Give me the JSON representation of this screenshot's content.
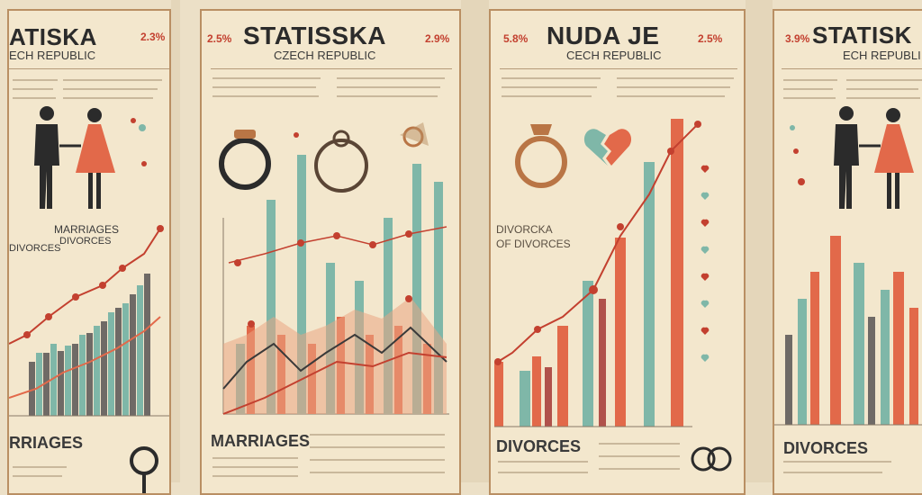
{
  "panels": [
    {
      "title": "ATISKA",
      "subtitle": "ECH REPUBLIC",
      "pct_right": "2.3%",
      "legend_1": "MARRIAGES",
      "legend_2": "DIVORCES",
      "legend_left": "DIVORCES",
      "footer": "RRIAGES"
    },
    {
      "title": "STATISSKA",
      "subtitle": "CZECH REPUBLIC",
      "pct_left": "2.5%",
      "pct_right": "2.9%",
      "footer": "MARRIAGES"
    },
    {
      "title": "NUDA JE",
      "subtitle": "CECH REPUBLIC",
      "pct_left": "5.8%",
      "pct_right": "2.5%",
      "annotation_1": "DIVORCKA",
      "annotation_2": "OF DIVORCES",
      "footer": "DIVORCES"
    },
    {
      "title": "STATISK",
      "subtitle": "ECH REPUBLI",
      "pct_left": "3.9%",
      "footer": "DIVORCES"
    }
  ],
  "colors": {
    "teal": "#7fb7a8",
    "coral": "#e2694a",
    "red": "#c3402f",
    "dark": "#2b2b2b",
    "bronze": "#b98f63"
  },
  "icons": [
    "couple-icon",
    "ring-icon",
    "broken-heart-icon",
    "interlocked-rings-icon",
    "heart-icon"
  ]
}
